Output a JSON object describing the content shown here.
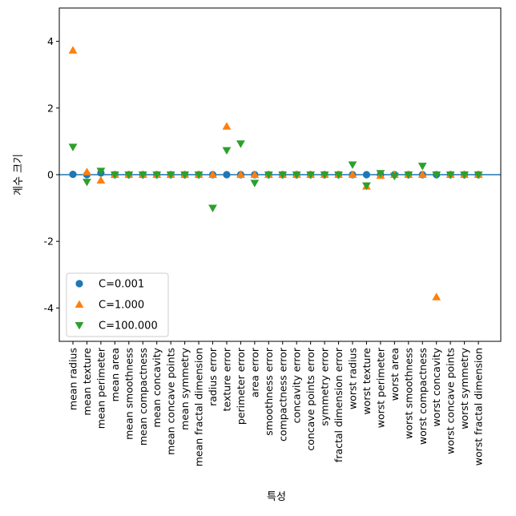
{
  "chart_data": {
    "type": "scatter",
    "xlabel": "특성",
    "ylabel": "계수 크기",
    "ylim": [
      -5,
      5
    ],
    "yticks": [
      4,
      2,
      0,
      -2,
      -4
    ],
    "ytick_labels": [
      "4",
      "2",
      "0",
      "-2",
      "-4"
    ],
    "grid": false,
    "hline_y": 0,
    "hline_color": "#1f77b4",
    "legend_position": "lower-left",
    "categories": [
      "mean radius",
      "mean texture",
      "mean perimeter",
      "mean area",
      "mean smoothness",
      "mean compactness",
      "mean concavity",
      "mean concave points",
      "mean symmetry",
      "mean fractal dimension",
      "radius error",
      "texture error",
      "perimeter error",
      "area error",
      "smoothness error",
      "compactness error",
      "concavity error",
      "concave points error",
      "symmetry error",
      "fractal dimension error",
      "worst radius",
      "worst texture",
      "worst perimeter",
      "worst area",
      "worst smoothness",
      "worst compactness",
      "worst concavity",
      "worst concave points",
      "worst symmetry",
      "worst fractal dimension"
    ],
    "series": [
      {
        "name": "C=0.001",
        "marker": "circle",
        "color": "#1f77b4",
        "values": [
          0.01,
          0.0,
          0.05,
          0.0,
          0.0,
          0.0,
          0.0,
          0.0,
          0.0,
          0.0,
          0.0,
          0.0,
          0.0,
          0.0,
          0.0,
          0.0,
          0.0,
          0.0,
          0.0,
          0.0,
          0.0,
          0.0,
          0.0,
          0.0,
          0.0,
          0.0,
          0.0,
          0.0,
          0.0,
          0.0
        ]
      },
      {
        "name": "C=1.000",
        "marker": "triangle-up",
        "color": "#ff7f0e",
        "values": [
          3.73,
          0.08,
          -0.17,
          0.0,
          0.0,
          0.0,
          0.0,
          0.0,
          0.0,
          0.0,
          0.0,
          1.45,
          0.0,
          0.0,
          0.0,
          0.0,
          0.0,
          0.0,
          0.0,
          0.0,
          0.0,
          -0.35,
          -0.03,
          0.0,
          0.0,
          0.0,
          -3.67,
          0.0,
          0.0,
          0.0
        ]
      },
      {
        "name": "C=100.000",
        "marker": "triangle-down",
        "color": "#2ca02c",
        "values": [
          0.83,
          -0.22,
          0.11,
          0.0,
          0.0,
          0.0,
          0.0,
          0.0,
          0.0,
          0.0,
          -1.0,
          0.73,
          0.93,
          -0.25,
          0.0,
          0.0,
          0.0,
          0.0,
          0.0,
          0.0,
          0.3,
          -0.33,
          0.04,
          -0.04,
          0.0,
          0.26,
          0.0,
          0.0,
          0.0,
          0.0
        ]
      }
    ]
  }
}
